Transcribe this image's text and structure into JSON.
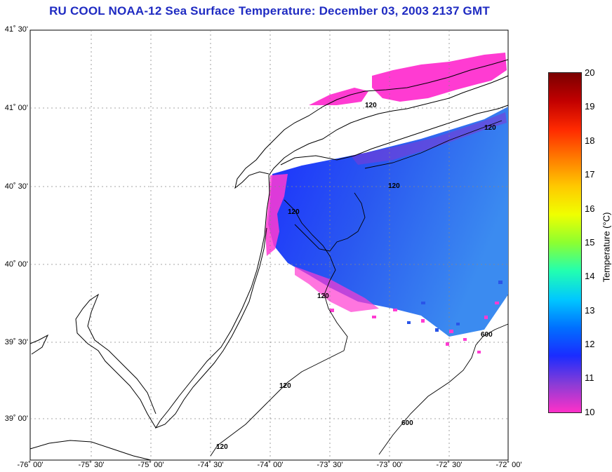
{
  "title": "RU COOL  NOAA-12  Sea Surface Temperature:  December 03, 2003 2137 GMT",
  "lat_labels": [
    "41˚ 30'",
    "41˚ 00'",
    "40˚ 30'",
    "40˚ 00'",
    "39˚ 30'",
    "39˚ 00'"
  ],
  "lon_labels": [
    "-76˚ 00'",
    "-75˚ 30'",
    "-75˚ 00'",
    "-74˚ 30'",
    "-74˚ 00'",
    "-73˚ 30'",
    "-73˚ 00'",
    "-72˚ 30'",
    "-72˚ 00'"
  ],
  "colorbar": {
    "ticks": [
      "20",
      "19",
      "18",
      "17",
      "16",
      "15",
      "14",
      "13",
      "12",
      "11",
      "10"
    ],
    "label": "Temperature (°C)",
    "colors": [
      "#7a0000",
      "#c20000",
      "#ff2a00",
      "#ff7a00",
      "#ffc800",
      "#f0ff00",
      "#8cff30",
      "#22ffb0",
      "#00c8ff",
      "#0070ff",
      "#1a2cff",
      "#8a3cd6",
      "#ff30c8"
    ]
  },
  "contour_labels": [
    "120",
    "120",
    "120",
    "120",
    "120",
    "120",
    "120",
    "600",
    "600"
  ],
  "colors": {
    "title": "#1f2bc2",
    "land": "#ffffff",
    "sst_warm": "#2a55e8",
    "sst_cool": "#ff3bd2",
    "coast": "#000000",
    "grid": "#888888"
  }
}
